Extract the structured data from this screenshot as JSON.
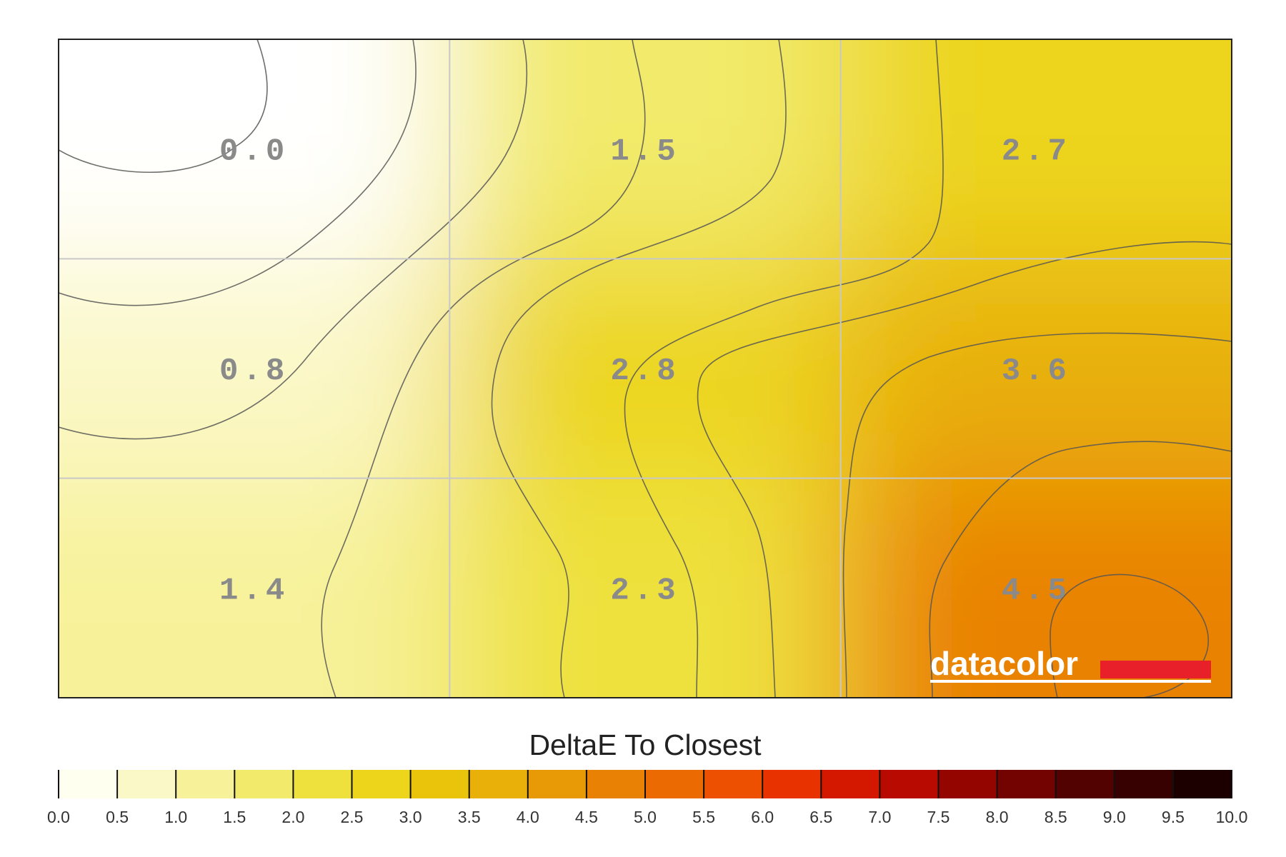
{
  "chart_data": {
    "type": "heatmap",
    "rows": 3,
    "cols": 3,
    "values": [
      [
        0.0,
        1.5,
        2.7
      ],
      [
        0.8,
        2.8,
        3.6
      ],
      [
        1.4,
        2.3,
        4.5
      ]
    ],
    "cell_labels": [
      [
        "0.0",
        "1.5",
        "2.7"
      ],
      [
        "0.8",
        "2.8",
        "3.6"
      ],
      [
        "1.4",
        "2.3",
        "4.5"
      ]
    ],
    "legend_title": "DeltaE To Closest",
    "scale_range": [
      0,
      10
    ],
    "scale_ticks": [
      "0.0",
      "0.5",
      "1.0",
      "1.5",
      "2.0",
      "2.5",
      "3.0",
      "3.5",
      "4.0",
      "4.5",
      "5.0",
      "5.5",
      "6.0",
      "6.5",
      "7.0",
      "7.5",
      "8.0",
      "8.5",
      "9.0",
      "9.5",
      "10.0"
    ],
    "scale_colors": [
      "#fffff0",
      "#fbf8c8",
      "#f7f29a",
      "#f2ea6a",
      "#eee13e",
      "#ecd51a",
      "#e9c40a",
      "#e8b008",
      "#e89a06",
      "#e98204",
      "#eb6a02",
      "#ed5000",
      "#e83200",
      "#d41800",
      "#b80a00",
      "#950500",
      "#720300",
      "#520200",
      "#360100",
      "#1c0000"
    ],
    "grid": true,
    "contours": true,
    "logo": "datacolor",
    "colors": {
      "logo_bar": "#e8202a",
      "grid": "#c8c8c8",
      "contour": "#555555"
    }
  }
}
